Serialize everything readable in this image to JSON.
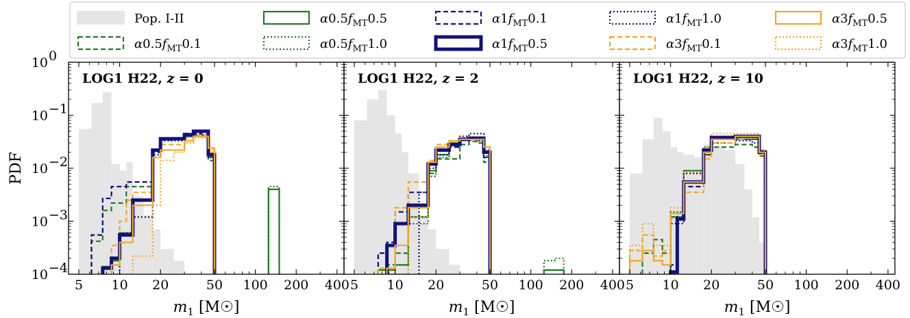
{
  "chart_data": {
    "type": "histogram",
    "xlabel": "m₁ [M☉]",
    "ylabel": "PDF",
    "xscale": "log",
    "yscale": "log",
    "xlim": [
      4.2,
      450
    ],
    "ylim": [
      0.0001,
      1
    ],
    "xticks": [
      5,
      10,
      20,
      50,
      100,
      200,
      400
    ],
    "yticks": [
      {
        "value": 0.0001,
        "base": "10",
        "exp": "−4"
      },
      {
        "value": 0.001,
        "base": "10",
        "exp": "−3"
      },
      {
        "value": 0.01,
        "base": "10",
        "exp": "−2"
      },
      {
        "value": 0.1,
        "base": "10",
        "exp": "−1"
      },
      {
        "value": 1,
        "base": "10",
        "exp": "0"
      }
    ],
    "legend": {
      "placement": "top",
      "entries": [
        {
          "label": "Pop. I-II",
          "key": "pop",
          "color": "#e5e5e5",
          "style": "fill"
        },
        {
          "label": "α0.5fMT0.1",
          "key": "g01",
          "color": "#1f7a1f",
          "style": "dashed"
        },
        {
          "label": "α0.5fMT0.5",
          "key": "g05",
          "color": "#1f7a1f",
          "style": "solid"
        },
        {
          "label": "α0.5fMT1.0",
          "key": "g10",
          "color": "#1f7a1f",
          "style": "dotted"
        },
        {
          "label": "α1fMT0.1",
          "key": "b01",
          "color": "#101080",
          "style": "dashed"
        },
        {
          "label": "α1fMT0.5",
          "key": "b05",
          "color": "#101080",
          "style": "solid-thick"
        },
        {
          "label": "α1fMT1.0",
          "key": "b10",
          "color": "#101080",
          "style": "dotted"
        },
        {
          "label": "α3fMT0.1",
          "key": "o01",
          "color": "#f5a623",
          "style": "dashed"
        },
        {
          "label": "α3fMT0.5",
          "key": "o05",
          "color": "#f5a623",
          "style": "solid"
        },
        {
          "label": "α3fMT1.0",
          "key": "o10",
          "color": "#f5a623",
          "style": "dotted"
        }
      ]
    },
    "bin_edges": [
      5,
      6.2,
      7.5,
      8.7,
      10,
      11.2,
      12.5,
      15,
      17.5,
      20,
      25,
      30,
      35,
      40,
      45,
      50,
      60,
      70,
      80,
      100,
      125,
      150,
      175,
      200
    ],
    "panels": [
      {
        "title": "LOG1 H22, z = 0",
        "series": {
          "pop": [
            0.055,
            0.17,
            0.27,
            0.012,
            0.009,
            0.013,
            0.003,
            0.0013,
            0.0007,
            0.0003,
            0.00018,
            null,
            null,
            null,
            null,
            null,
            null,
            null,
            null,
            null,
            null,
            null,
            null
          ],
          "g01": [
            null,
            0.00042,
            0.0016,
            0.0022,
            0.0022,
            0.0045,
            0.0045,
            0.0045,
            0.02,
            0.034,
            0.036,
            0.042,
            0.045,
            0.042,
            0.014,
            null,
            null,
            null,
            null,
            null,
            null,
            null,
            null
          ],
          "g05": [
            null,
            null,
            0.00014,
            0.00018,
            0.0006,
            0.0006,
            0.0025,
            0.0025,
            0.021,
            0.035,
            0.035,
            0.04,
            0.04,
            0.04,
            0.016,
            null,
            null,
            null,
            null,
            null,
            0.004,
            null,
            null
          ],
          "g10": [
            null,
            null,
            null,
            null,
            null,
            null,
            null,
            null,
            null,
            null,
            null,
            null,
            null,
            null,
            null,
            null,
            null,
            null,
            null,
            null,
            0.0045,
            null,
            null
          ],
          "b01": [
            null,
            0.00055,
            0.0027,
            0.0045,
            0.0045,
            0.0055,
            0.0055,
            0.0055,
            0.02,
            0.035,
            0.035,
            0.045,
            0.045,
            0.048,
            0.018,
            null,
            null,
            null,
            null,
            null,
            null,
            null,
            null
          ],
          "b05": [
            null,
            null,
            0.00013,
            0.0002,
            0.00055,
            0.00055,
            0.0025,
            0.0025,
            0.022,
            0.036,
            0.036,
            0.043,
            0.05,
            0.05,
            0.018,
            null,
            null,
            null,
            null,
            null,
            null,
            null,
            null
          ],
          "b10": [
            null,
            null,
            null,
            null,
            0.0006,
            0.0006,
            0.0012,
            0.0012,
            0.018,
            0.033,
            0.033,
            0.04,
            0.043,
            0.043,
            0.016,
            null,
            null,
            null,
            null,
            null,
            null,
            null,
            null
          ],
          "o01": [
            null,
            null,
            0.00013,
            0.00035,
            0.001,
            0.0025,
            0.0035,
            0.0035,
            0.016,
            0.028,
            0.028,
            0.038,
            0.042,
            0.042,
            0.02,
            null,
            null,
            null,
            null,
            null,
            null,
            null,
            null
          ],
          "o05": [
            null,
            null,
            null,
            0.00015,
            0.0004,
            0.0004,
            0.002,
            0.002,
            0.016,
            0.022,
            0.022,
            0.033,
            0.04,
            0.04,
            0.024,
            null,
            null,
            null,
            null,
            null,
            null,
            null,
            null
          ],
          "o10": [
            null,
            null,
            null,
            null,
            null,
            null,
            0.00022,
            0.00022,
            0.002,
            0.014,
            0.02,
            0.03,
            0.038,
            0.038,
            0.022,
            null,
            null,
            null,
            null,
            null,
            null,
            null,
            null
          ]
        }
      },
      {
        "title": "LOG1 H22, z = 2",
        "series": {
          "pop": [
            0.08,
            0.2,
            0.3,
            0.1,
            0.045,
            0.02,
            0.008,
            0.0012,
            0.0007,
            0.0003,
            0.00015,
            null,
            null,
            null,
            null,
            null,
            null,
            null,
            null,
            null,
            null,
            null,
            null
          ],
          "g01": [
            null,
            null,
            null,
            0.00015,
            0.00025,
            0.00025,
            0.0012,
            0.0012,
            0.008,
            0.015,
            0.015,
            0.028,
            0.032,
            0.03,
            0.013,
            null,
            null,
            null,
            null,
            null,
            null,
            null,
            null
          ],
          "g05": [
            null,
            null,
            0.00012,
            0.00012,
            0.00015,
            0.00015,
            0.0012,
            0.0012,
            0.009,
            0.018,
            0.03,
            0.035,
            0.035,
            0.035,
            0.016,
            null,
            null,
            null,
            null,
            null,
            0.00012,
            0.00012,
            null
          ],
          "g10": [
            null,
            null,
            null,
            null,
            0.0001,
            0.0001,
            0.0009,
            0.0009,
            0.007,
            0.016,
            0.03,
            0.038,
            0.038,
            0.036,
            0.017,
            null,
            null,
            null,
            null,
            null,
            0.00018,
            0.0002,
            null
          ],
          "b01": [
            null,
            null,
            0.00025,
            0.0004,
            0.0015,
            0.0015,
            0.0035,
            0.0035,
            0.013,
            0.025,
            0.025,
            0.035,
            0.035,
            0.033,
            0.016,
            null,
            null,
            null,
            null,
            null,
            null,
            null,
            null
          ],
          "b05": [
            null,
            null,
            null,
            0.00035,
            0.0009,
            0.0009,
            0.002,
            0.002,
            0.012,
            0.022,
            0.028,
            0.035,
            0.037,
            0.037,
            0.02,
            null,
            null,
            null,
            null,
            null,
            null,
            null,
            null
          ],
          "b10": [
            null,
            null,
            null,
            null,
            null,
            null,
            null,
            0.0035,
            0.01,
            0.018,
            0.03,
            0.04,
            0.045,
            0.045,
            0.022,
            null,
            null,
            null,
            null,
            null,
            null,
            null,
            null
          ],
          "o01": [
            null,
            null,
            0.00013,
            0.00035,
            0.0018,
            0.0018,
            0.0055,
            0.0055,
            0.014,
            0.028,
            0.033,
            0.038,
            0.038,
            0.038,
            0.019,
            null,
            null,
            null,
            null,
            null,
            null,
            null,
            null
          ],
          "o05": [
            null,
            null,
            null,
            0.00013,
            0.00035,
            0.00035,
            0.0018,
            0.0018,
            0.013,
            0.025,
            0.033,
            0.035,
            0.035,
            0.035,
            0.025,
            null,
            null,
            null,
            null,
            null,
            null,
            null,
            null
          ],
          "o10": [
            null,
            null,
            null,
            null,
            0.0001,
            0.0001,
            0.0012,
            0.0012,
            0.012,
            0.025,
            0.03,
            0.033,
            0.033,
            0.033,
            0.022,
            null,
            null,
            null,
            null,
            null,
            null,
            null,
            null
          ]
        }
      },
      {
        "title": "LOG1 H22, z = 10",
        "series": {
          "pop": [
            0.008,
            0.035,
            0.09,
            0.05,
            0.025,
            0.02,
            0.018,
            0.016,
            0.028,
            0.025,
            0.022,
            0.012,
            0.004,
            0.0012,
            0.0004,
            null,
            null,
            null,
            null,
            null,
            null,
            null,
            null
          ],
          "g01": [
            null,
            0.00025,
            0.00045,
            0.00025,
            0.0012,
            0.0012,
            0.0055,
            0.0055,
            0.018,
            0.025,
            0.025,
            0.028,
            0.028,
            0.025,
            0.017,
            null,
            null,
            null,
            null,
            null,
            null,
            null,
            null
          ],
          "g05": [
            null,
            null,
            null,
            null,
            0.0012,
            0.0012,
            0.009,
            0.009,
            0.022,
            0.035,
            0.035,
            0.035,
            0.035,
            0.035,
            0.02,
            null,
            null,
            null,
            null,
            null,
            null,
            null,
            null
          ],
          "g10": [
            null,
            null,
            null,
            null,
            0.0015,
            0.0015,
            0.008,
            0.008,
            0.025,
            0.04,
            0.04,
            0.04,
            0.04,
            0.035,
            0.022,
            null,
            null,
            null,
            null,
            null,
            null,
            null,
            null
          ],
          "b01": [
            null,
            null,
            null,
            null,
            0.00015,
            0.0014,
            0.0045,
            0.0045,
            0.02,
            0.035,
            0.035,
            0.038,
            0.038,
            0.038,
            0.02,
            null,
            null,
            null,
            null,
            null,
            null,
            null,
            null
          ],
          "b05": [
            null,
            null,
            null,
            null,
            0.00011,
            0.0011,
            0.0055,
            0.0055,
            0.022,
            0.038,
            0.038,
            0.04,
            0.04,
            0.04,
            0.02,
            null,
            null,
            null,
            null,
            null,
            null,
            null,
            null
          ],
          "b10": [
            null,
            null,
            null,
            null,
            0.0009,
            0.0009,
            0.008,
            0.008,
            0.018,
            0.03,
            0.03,
            0.033,
            0.033,
            0.03,
            0.02,
            null,
            null,
            null,
            null,
            null,
            null,
            null,
            null
          ],
          "o01": [
            0.00028,
            0.00055,
            0.00022,
            0.00028,
            0.0011,
            0.0011,
            0.0035,
            0.0035,
            0.015,
            0.03,
            0.03,
            0.035,
            0.038,
            0.038,
            0.018,
            null,
            null,
            null,
            null,
            null,
            null,
            null,
            null
          ],
          "o05": [
            0.00018,
            0.00028,
            0.00018,
            0.00015,
            0.0014,
            0.0014,
            0.0055,
            0.0055,
            0.02,
            0.035,
            0.035,
            0.04,
            0.04,
            0.04,
            0.02,
            null,
            null,
            null,
            null,
            null,
            null,
            null,
            null
          ],
          "o10": [
            0.00035,
            0.0009,
            0.00035,
            0.00035,
            0.0018,
            0.0018,
            0.0085,
            0.0085,
            0.025,
            0.045,
            0.045,
            0.045,
            0.045,
            0.045,
            0.022,
            null,
            null,
            null,
            null,
            null,
            null,
            null,
            null
          ]
        }
      }
    ]
  }
}
